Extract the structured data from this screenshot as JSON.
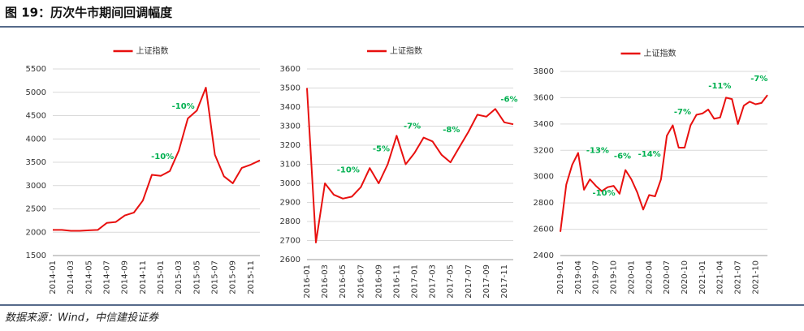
{
  "title": "图 19：历次牛市期间回调幅度",
  "source": "数据来源：Wind，中信建投证券",
  "chart_data": [
    {
      "type": "line",
      "x": [
        "2014-01",
        "2014-02",
        "2014-03",
        "2014-04",
        "2014-05",
        "2014-06",
        "2014-07",
        "2014-08",
        "2014-09",
        "2014-10",
        "2014-11",
        "2014-12",
        "2015-01",
        "2015-02",
        "2015-03",
        "2015-04",
        "2015-05",
        "2015-06",
        "2015-07",
        "2015-08",
        "2015-09",
        "2015-10",
        "2015-11",
        "2015-12"
      ],
      "series": [
        {
          "name": "上证指数",
          "color": "#e8100f",
          "values": [
            2050,
            2050,
            2030,
            2030,
            2040,
            2050,
            2200,
            2220,
            2360,
            2420,
            2680,
            3230,
            3210,
            3310,
            3750,
            4440,
            4610,
            5100,
            3660,
            3200,
            3050,
            3380,
            3450,
            3540
          ]
        }
      ],
      "xticks": [
        "2014-01",
        "2014-03",
        "2014-05",
        "2014-07",
        "2014-09",
        "2014-11",
        "2015-01",
        "2015-03",
        "2015-05",
        "2015-07",
        "2015-09",
        "2015-11"
      ],
      "ylim": [
        1500,
        5500
      ],
      "yticks": [
        1500,
        2000,
        2500,
        3000,
        3500,
        4000,
        4500,
        5000,
        5500
      ],
      "grid": true,
      "annotations": [
        "-10%",
        "-10%"
      ],
      "annotation_color": "#00b050"
    },
    {
      "type": "line",
      "x": [
        "2016-01",
        "2016-02",
        "2016-03",
        "2016-04",
        "2016-05",
        "2016-06",
        "2016-07",
        "2016-08",
        "2016-09",
        "2016-10",
        "2016-11",
        "2016-12",
        "2017-01",
        "2017-02",
        "2017-03",
        "2017-04",
        "2017-05",
        "2017-06",
        "2017-07",
        "2017-08",
        "2017-09",
        "2017-10",
        "2017-11",
        "2017-12"
      ],
      "series": [
        {
          "name": "上证指数",
          "color": "#e8100f",
          "values": [
            3500,
            2690,
            3000,
            2940,
            2920,
            2930,
            2980,
            3080,
            3000,
            3100,
            3250,
            3100,
            3160,
            3240,
            3220,
            3150,
            3110,
            3190,
            3270,
            3360,
            3350,
            3390,
            3320,
            3310
          ]
        }
      ],
      "xticks": [
        "2016-01",
        "2016-03",
        "2016-05",
        "2016-07",
        "2016-09",
        "2016-11",
        "2017-01",
        "2017-03",
        "2017-05",
        "2017-07",
        "2017-09",
        "2017-11"
      ],
      "ylim": [
        2600,
        3600
      ],
      "yticks": [
        2600,
        2700,
        2800,
        2900,
        3000,
        3100,
        3200,
        3300,
        3400,
        3500,
        3600
      ],
      "grid": true,
      "annotations": [
        "-10%",
        "-5%",
        "-7%",
        "-8%",
        "-6%"
      ],
      "annotation_color": "#00b050"
    },
    {
      "type": "line",
      "x": [
        "2019-01",
        "2019-02",
        "2019-03",
        "2019-04",
        "2019-05",
        "2019-06",
        "2019-07",
        "2019-08",
        "2019-09",
        "2019-10",
        "2019-11",
        "2019-12",
        "2020-01",
        "2020-02",
        "2020-03",
        "2020-04",
        "2020-05",
        "2020-06",
        "2020-07",
        "2020-08",
        "2020-09",
        "2020-10",
        "2020-11",
        "2020-12",
        "2021-01",
        "2021-02",
        "2021-03",
        "2021-04",
        "2021-05",
        "2021-06",
        "2021-07",
        "2021-08",
        "2021-09",
        "2021-10",
        "2021-11",
        "2021-12"
      ],
      "series": [
        {
          "name": "上证指数",
          "color": "#e8100f",
          "values": [
            2580,
            2940,
            3090,
            3180,
            2900,
            2980,
            2930,
            2890,
            2920,
            2930,
            2870,
            3050,
            2980,
            2880,
            2750,
            2860,
            2850,
            2980,
            3310,
            3390,
            3220,
            3220,
            3390,
            3470,
            3480,
            3510,
            3440,
            3450,
            3600,
            3590,
            3400,
            3540,
            3570,
            3550,
            3560,
            3620
          ]
        }
      ],
      "xticks": [
        "2019-01",
        "2019-04",
        "2019-07",
        "2019-10",
        "2020-01",
        "2020-04",
        "2020-07",
        "2020-10",
        "2021-01",
        "2021-04",
        "2021-07",
        "2021-10"
      ],
      "ylim": [
        2400,
        3800
      ],
      "yticks": [
        2400,
        2600,
        2800,
        3000,
        3200,
        3400,
        3600,
        3800
      ],
      "grid": true,
      "annotations": [
        "-13%",
        "-6%",
        "-10%",
        "-14%",
        "-7%",
        "-11%",
        "-7%"
      ],
      "annotation_color": "#00b050"
    }
  ]
}
